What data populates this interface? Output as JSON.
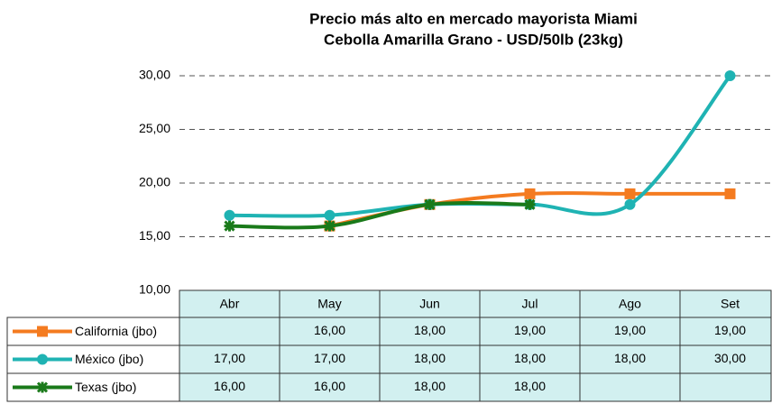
{
  "chart_data": {
    "type": "line",
    "title": "Precio más alto en mercado mayorista Miami",
    "subtitle": "Cebolla Amarilla Grano - USD/50lb (23kg)",
    "categories": [
      "Abr",
      "May",
      "Jun",
      "Jul",
      "Ago",
      "Set"
    ],
    "series": [
      {
        "name": "California (jbo)",
        "color": "#f47b20",
        "marker": "square",
        "values": [
          null,
          16,
          18,
          19,
          19,
          19
        ],
        "value_labels": [
          null,
          "16,00",
          "18,00",
          "19,00",
          "19,00",
          "19,00"
        ]
      },
      {
        "name": "México (jbo)",
        "color": "#1fb3b3",
        "marker": "circle",
        "values": [
          17,
          17,
          18,
          18,
          18,
          30
        ],
        "value_labels": [
          "17,00",
          "17,00",
          "18,00",
          "18,00",
          "18,00",
          "30,00"
        ]
      },
      {
        "name": "Texas (jbo)",
        "color": "#1a7a1a",
        "marker": "star",
        "values": [
          16,
          16,
          18,
          18,
          null,
          null
        ],
        "value_labels": [
          "16,00",
          "16,00",
          "18,00",
          "18,00",
          null,
          null
        ]
      }
    ],
    "ylim": [
      10,
      30
    ],
    "yticks": [
      {
        "value": 10,
        "label": "10,00"
      },
      {
        "value": 15,
        "label": "15,00"
      },
      {
        "value": 20,
        "label": "20,00"
      },
      {
        "value": 25,
        "label": "25,00"
      },
      {
        "value": 30,
        "label": "30,00"
      }
    ],
    "grid": true
  }
}
